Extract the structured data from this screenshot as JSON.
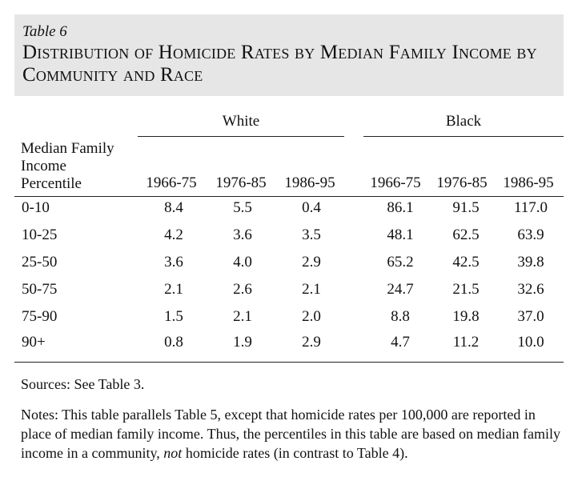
{
  "table": {
    "number": "Table 6",
    "title": "Distribution of Homicide Rates by Median Family Income by Community and Race",
    "stub_header": [
      "Median Family",
      "Income",
      "Percentile"
    ],
    "groups": [
      "White",
      "Black"
    ],
    "columns": [
      "1966-75",
      "1976-85",
      "1986-95",
      "1966-75",
      "1976-85",
      "1986-95"
    ],
    "rows": [
      {
        "label": "0-10",
        "values": [
          "8.4",
          "5.5",
          "0.4",
          "86.1",
          "91.5",
          "117.0"
        ]
      },
      {
        "label": "10-25",
        "values": [
          "4.2",
          "3.6",
          "3.5",
          "48.1",
          "62.5",
          "63.9"
        ]
      },
      {
        "label": "25-50",
        "values": [
          "3.6",
          "4.0",
          "2.9",
          "65.2",
          "42.5",
          "39.8"
        ]
      },
      {
        "label": "50-75",
        "values": [
          "2.1",
          "2.6",
          "2.1",
          "24.7",
          "21.5",
          "32.6"
        ]
      },
      {
        "label": "75-90",
        "values": [
          "1.5",
          "2.1",
          "2.0",
          "8.8",
          "19.8",
          "37.0"
        ]
      },
      {
        "label": "90+",
        "values": [
          "0.8",
          "1.9",
          "2.9",
          "4.7",
          "11.2",
          "10.0"
        ]
      }
    ]
  },
  "sources": "Sources:  See Table 3.",
  "notes": {
    "before": "Notes:  This table parallels Table 5, except that homicide rates per 100,000 are reported in place of median family income. Thus, the percentiles in this table are based on median family income in a community, ",
    "emphasis": "not",
    "after": " homicide rates (in contrast to Table 4)."
  }
}
